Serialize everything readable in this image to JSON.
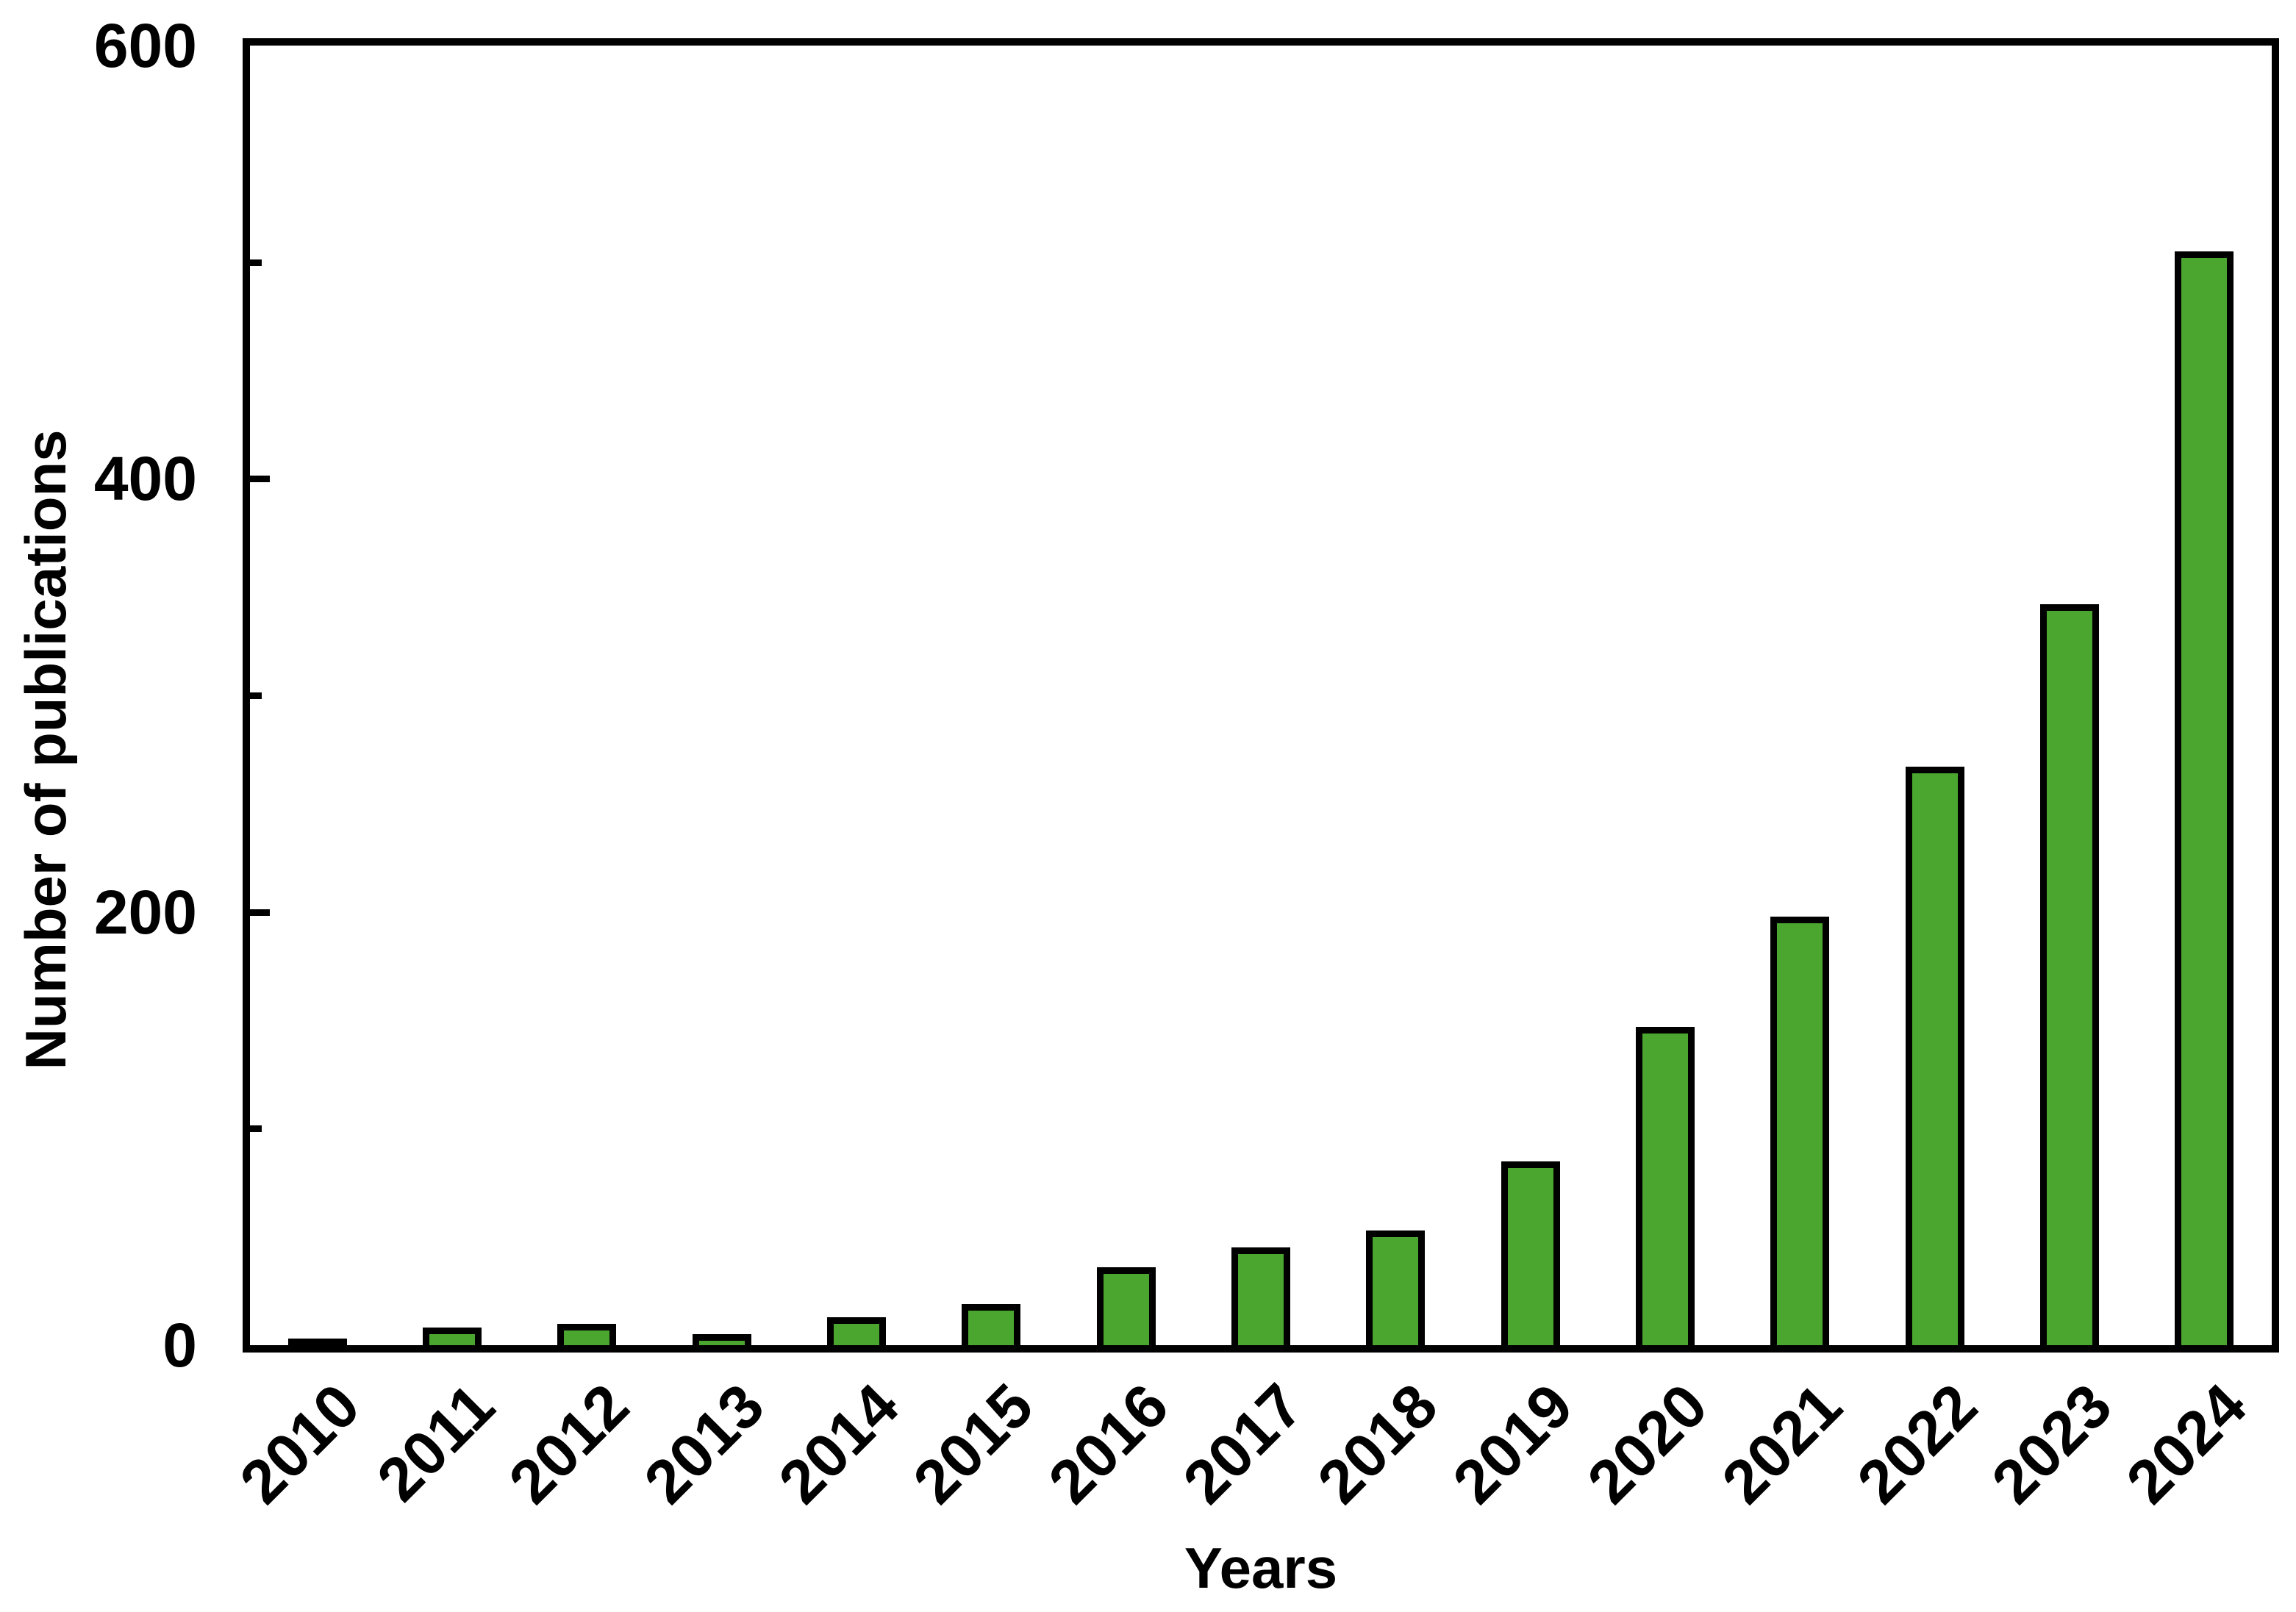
{
  "chart_data": {
    "type": "bar",
    "title": "",
    "xlabel": "Years",
    "ylabel": "Number of publications",
    "categories": [
      "2010",
      "2011",
      "2012",
      "2013",
      "2014",
      "2015",
      "2016",
      "2017",
      "2018",
      "2019",
      "2020",
      "2021",
      "2022",
      "2023",
      "2024"
    ],
    "values": [
      3,
      8,
      10,
      5,
      13,
      19,
      36,
      45,
      53,
      85,
      147,
      198,
      267,
      342,
      505
    ],
    "ylim": [
      0,
      600
    ],
    "y_major_ticks": [
      0,
      200,
      400,
      600
    ],
    "y_minor_ticks": [
      100,
      300,
      500
    ],
    "grid": false,
    "legend_position": "none",
    "x_tick_label_rotation_deg": 45,
    "colors": {
      "bar_fill": "#4AA62E",
      "bar_outline": "#000000",
      "axis": "#000000",
      "text": "#000000",
      "background": "#FFFFFF"
    }
  }
}
